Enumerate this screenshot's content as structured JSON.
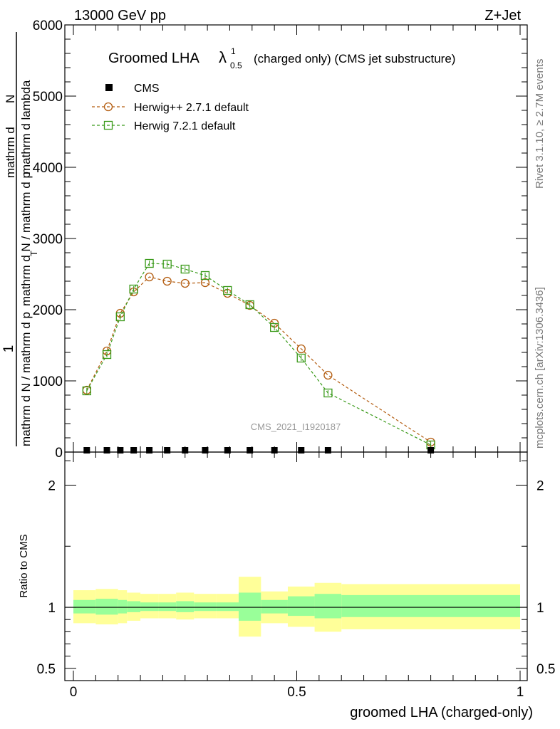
{
  "header": {
    "energy": "13000 GeV pp",
    "process": "Z+Jet"
  },
  "side": {
    "rivet": "Rivet 3.1.10, ≥ 2.7M events",
    "mcplots": "mcplots.cern.ch [arXiv:1306.3436]"
  },
  "watermark": "CMS_2021_I1920187",
  "legend": {
    "cms": "CMS",
    "herwigpp": "Herwig++ 2.7.1 default",
    "herwig7": "Herwig 7.2.1 default"
  },
  "colors": {
    "herwigpp": "#b35c0f",
    "herwig7": "#3a9a1a",
    "band_outer": "#ffff99",
    "band_inner": "#99ff99"
  },
  "chart_data": [
    {
      "type": "line",
      "title_main": "Groomed LHA",
      "title_sym": "λ",
      "title_sup": "1",
      "title_sub": "0.5",
      "title_rest": "(charged only) (CMS jet substructure)",
      "ylabel_num": "1",
      "ylabel_den": "mathrm d N / mathrm d p",
      "ylabel_den2": "mathrm d N / mathrm d p",
      "ylabel_sub": "T",
      "ylabel_mid": "mathrm d lambda",
      "ylabel_top": "mathrm d",
      "ylabel_topN": "N",
      "ylim": [
        0,
        6000
      ],
      "yticks": [
        0,
        1000,
        2000,
        3000,
        4000,
        5000,
        6000
      ],
      "yticklabels": [
        "0",
        "1000",
        "2000",
        "3000",
        "4000",
        "5000",
        "6000"
      ],
      "x": [
        0.03,
        0.075,
        0.105,
        0.135,
        0.17,
        0.21,
        0.25,
        0.295,
        0.345,
        0.395,
        0.45,
        0.51,
        0.57,
        0.8
      ],
      "series": [
        {
          "name": "CMS",
          "values": [
            0,
            0,
            0,
            0,
            0,
            0,
            0,
            0,
            0,
            0,
            0,
            0,
            0,
            0
          ]
        },
        {
          "name": "Herwig++ 2.7.1 default",
          "values": [
            870,
            1420,
            1950,
            2250,
            2460,
            2400,
            2370,
            2380,
            2230,
            2060,
            1810,
            1450,
            1080,
            140
          ]
        },
        {
          "name": "Herwig 7.2.1 default",
          "values": [
            860,
            1370,
            1900,
            2290,
            2650,
            2640,
            2570,
            2480,
            2270,
            2070,
            1750,
            1320,
            830,
            100
          ]
        }
      ]
    },
    {
      "type": "area",
      "ylabel": "Ratio to CMS",
      "xlabel": "groomed LHA (charged-only)",
      "xlim": [
        0,
        1
      ],
      "xticks": [
        0,
        0.5,
        1
      ],
      "xticklabels": [
        "0",
        "0.5",
        "1"
      ],
      "ylim": [
        0.4,
        2.3
      ],
      "yticks": [
        0.5,
        1,
        2
      ],
      "yticklabels": [
        "0.5",
        "1",
        "2"
      ],
      "bins": [
        0,
        0.05,
        0.1,
        0.12,
        0.15,
        0.19,
        0.23,
        0.27,
        0.32,
        0.37,
        0.42,
        0.48,
        0.54,
        0.6,
        1.0
      ],
      "outer_lo": [
        0.87,
        0.86,
        0.87,
        0.89,
        0.91,
        0.91,
        0.9,
        0.91,
        0.91,
        0.76,
        0.87,
        0.84,
        0.8,
        0.82
      ],
      "outer_hi": [
        1.14,
        1.15,
        1.14,
        1.12,
        1.11,
        1.11,
        1.12,
        1.11,
        1.11,
        1.25,
        1.13,
        1.17,
        1.2,
        1.19
      ],
      "inner_lo": [
        0.95,
        0.94,
        0.95,
        0.96,
        0.97,
        0.97,
        0.96,
        0.97,
        0.97,
        0.89,
        0.95,
        0.93,
        0.91,
        0.92
      ],
      "inner_hi": [
        1.06,
        1.07,
        1.06,
        1.05,
        1.04,
        1.04,
        1.05,
        1.04,
        1.04,
        1.12,
        1.06,
        1.09,
        1.11,
        1.1
      ]
    }
  ]
}
